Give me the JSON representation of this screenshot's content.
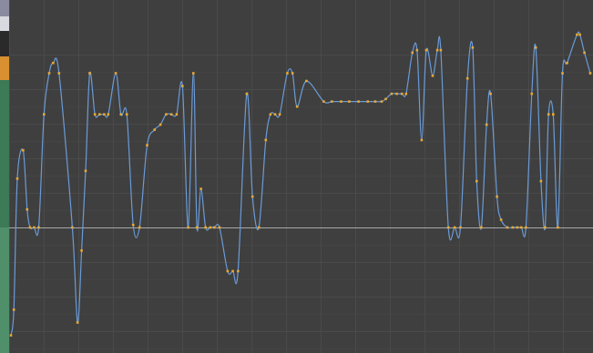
{
  "colors": {
    "background": "#3f3f3f",
    "grid_major": "#4a4a4a",
    "grid_minor": "#444444",
    "zero_line": "#a8a8a8",
    "curve": "#6a9bd8",
    "keyframe": "#e7a935",
    "side_strip": [
      "#8a8aa0",
      "#d9d9e0",
      "#2a2a2a",
      "#d89030",
      "#3d7a56",
      "#4f8f6a"
    ]
  },
  "chart_data": {
    "type": "line",
    "title": "",
    "xlabel": "",
    "ylabel": "",
    "xlim": [
      0,
      100
    ],
    "ylim": [
      -2.2,
      3.5
    ],
    "grid": true,
    "series": [
      {
        "name": "",
        "points": [
          [
            0,
            -2.1
          ],
          [
            0.5,
            -1.6
          ],
          [
            1.1,
            0.95
          ],
          [
            2.1,
            1.5
          ],
          [
            2.8,
            0.35
          ],
          [
            3.3,
            0
          ],
          [
            4.0,
            0
          ],
          [
            4.8,
            0
          ],
          [
            5.7,
            2.2
          ],
          [
            6.6,
            3.0
          ],
          [
            7.3,
            3.2
          ],
          [
            8.3,
            3.0
          ],
          [
            10.6,
            0
          ],
          [
            11.5,
            -1.85
          ],
          [
            12.2,
            -0.45
          ],
          [
            12.9,
            1.1
          ],
          [
            13.6,
            3.0
          ],
          [
            14.5,
            2.2
          ],
          [
            15.3,
            2.2
          ],
          [
            16.1,
            2.2
          ],
          [
            16.8,
            2.2
          ],
          [
            18.1,
            3.0
          ],
          [
            19.0,
            2.2
          ],
          [
            20.0,
            2.2
          ],
          [
            21.1,
            0.05
          ],
          [
            22.2,
            0
          ],
          [
            23.5,
            1.6
          ],
          [
            24.8,
            1.9
          ],
          [
            25.8,
            2.0
          ],
          [
            26.8,
            2.2
          ],
          [
            27.7,
            2.2
          ],
          [
            28.6,
            2.2
          ],
          [
            29.6,
            2.75
          ],
          [
            30.6,
            0
          ],
          [
            31.5,
            3.0
          ],
          [
            32.1,
            0
          ],
          [
            32.8,
            0.75
          ],
          [
            33.6,
            0
          ],
          [
            34.4,
            0
          ],
          [
            35.1,
            0
          ],
          [
            36.0,
            0
          ],
          [
            37.4,
            -0.85
          ],
          [
            38.3,
            -0.85
          ],
          [
            39.2,
            -0.85
          ],
          [
            40.7,
            2.6
          ],
          [
            41.7,
            0.6
          ],
          [
            42.8,
            0
          ],
          [
            44.0,
            1.7
          ],
          [
            44.8,
            2.2
          ],
          [
            45.6,
            2.2
          ],
          [
            46.4,
            2.2
          ],
          [
            47.7,
            3.0
          ],
          [
            48.6,
            3.0
          ],
          [
            49.4,
            2.35
          ],
          [
            51.0,
            2.85
          ],
          [
            54.0,
            2.45
          ],
          [
            55.4,
            2.45
          ],
          [
            57.0,
            2.45
          ],
          [
            58.4,
            2.45
          ],
          [
            60.0,
            2.45
          ],
          [
            61.6,
            2.45
          ],
          [
            62.9,
            2.45
          ],
          [
            64.0,
            2.45
          ],
          [
            64.7,
            2.5
          ],
          [
            65.7,
            2.6
          ],
          [
            66.6,
            2.6
          ],
          [
            67.5,
            2.6
          ],
          [
            68.2,
            2.6
          ],
          [
            69.3,
            3.4
          ],
          [
            70.1,
            3.45
          ],
          [
            70.9,
            1.7
          ],
          [
            71.7,
            3.45
          ],
          [
            72.8,
            2.95
          ],
          [
            73.6,
            3.45
          ],
          [
            74.2,
            3.45
          ],
          [
            75.5,
            0
          ],
          [
            76.6,
            0
          ],
          [
            77.6,
            0
          ],
          [
            78.8,
            2.9
          ],
          [
            79.7,
            3.5
          ],
          [
            80.4,
            0.9
          ],
          [
            81.2,
            0
          ],
          [
            82.1,
            2.0
          ],
          [
            82.8,
            2.6
          ],
          [
            83.9,
            0.6
          ],
          [
            84.6,
            0.15
          ],
          [
            85.7,
            0
          ],
          [
            86.6,
            0
          ],
          [
            87.4,
            0
          ],
          [
            88.1,
            0
          ],
          [
            88.9,
            0
          ],
          [
            89.9,
            2.6
          ],
          [
            90.6,
            3.5
          ],
          [
            91.5,
            0.9
          ],
          [
            92.2,
            0
          ],
          [
            92.8,
            2.2
          ],
          [
            93.6,
            2.2
          ],
          [
            94.4,
            0
          ],
          [
            95.2,
            3.0
          ],
          [
            96.0,
            3.2
          ],
          [
            97.7,
            3.75
          ],
          [
            98.2,
            3.75
          ],
          [
            99.0,
            3.4
          ],
          [
            100.0,
            3.0
          ]
        ]
      }
    ]
  }
}
